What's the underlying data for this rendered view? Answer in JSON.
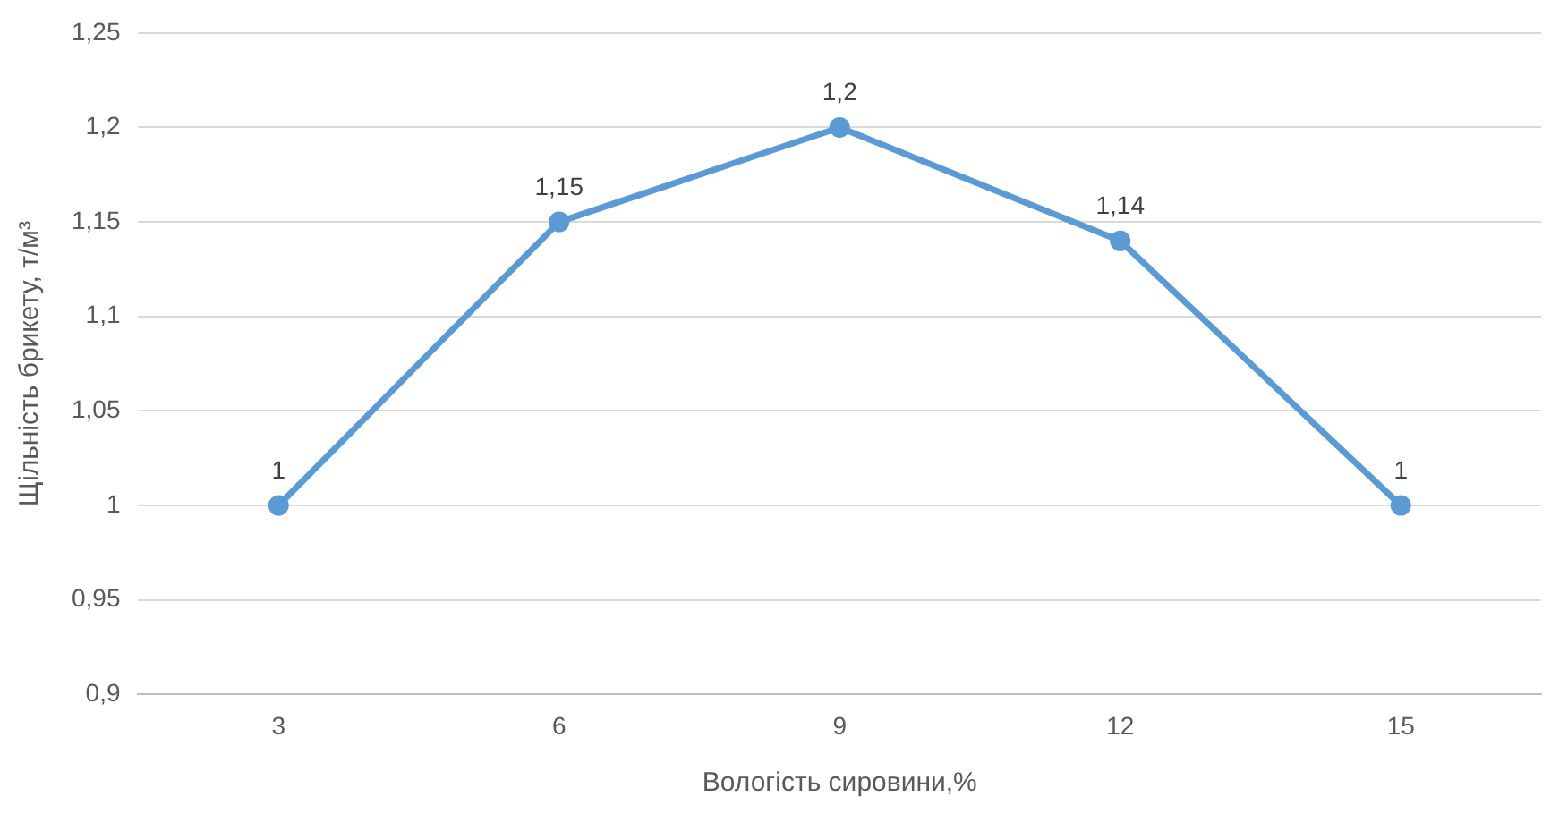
{
  "chart_data": {
    "type": "line",
    "xlabel": "Вологість сировини,%",
    "ylabel": "Щільність брикету, т/м³",
    "categories": [
      "3",
      "6",
      "9",
      "12",
      "15"
    ],
    "series": [
      {
        "color": "#5b9bd5",
        "values": [
          1,
          1.15,
          1.2,
          1.14,
          1
        ],
        "value_labels": [
          "1",
          "1,15",
          "1,2",
          "1,14",
          "1"
        ]
      }
    ],
    "ylim": [
      0.9,
      1.25
    ],
    "yticks": [
      {
        "value": 0.9,
        "label": "0,9"
      },
      {
        "value": 0.95,
        "label": "0,95"
      },
      {
        "value": 1,
        "label": "1"
      },
      {
        "value": 1.05,
        "label": "1,05"
      },
      {
        "value": 1.1,
        "label": "1,1"
      },
      {
        "value": 1.15,
        "label": "1,15"
      },
      {
        "value": 1.2,
        "label": "1,2"
      },
      {
        "value": 1.25,
        "label": "1,25"
      }
    ],
    "grid": "y",
    "marker": "circle",
    "line_style": "solid",
    "legend": false
  }
}
